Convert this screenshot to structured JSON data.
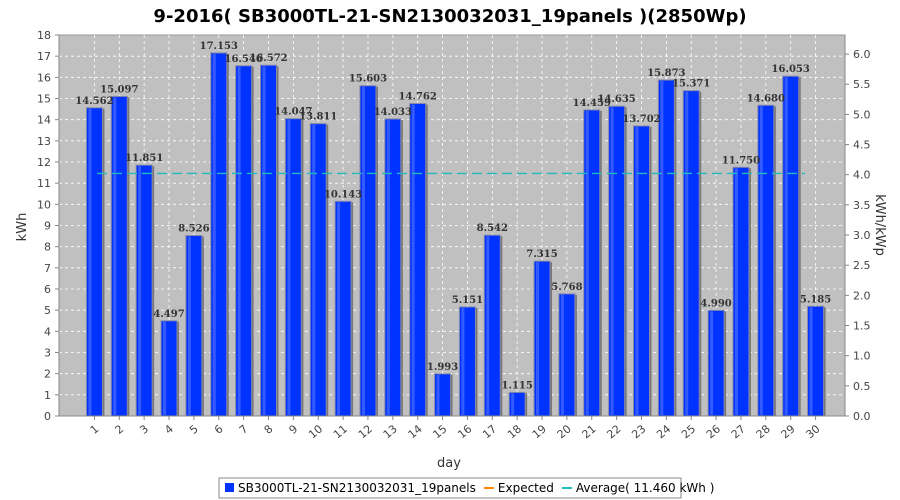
{
  "chart_data": {
    "type": "bar",
    "title": "9-2016( SB3000TL-21-SN2130032031_19panels )(2850Wp)",
    "xlabel": "day",
    "ylabel": "kWh",
    "y2label": "kWh/kWp",
    "ylim": [
      0,
      18
    ],
    "y2lim": [
      0,
      6.3157
    ],
    "yticks": [
      0,
      1,
      2,
      3,
      4,
      5,
      6,
      7,
      8,
      9,
      10,
      11,
      12,
      13,
      14,
      15,
      16,
      17,
      18
    ],
    "y2ticks": [
      "0.0",
      "0.5",
      "1.0",
      "1.5",
      "2.0",
      "2.5",
      "3.0",
      "3.5",
      "4.0",
      "4.5",
      "5.0",
      "5.5",
      "6.0"
    ],
    "grid": true,
    "legend_position": "bottom",
    "categories": [
      "1",
      "2",
      "3",
      "4",
      "5",
      "6",
      "7",
      "8",
      "9",
      "10",
      "11",
      "12",
      "13",
      "14",
      "15",
      "16",
      "17",
      "18",
      "19",
      "20",
      "21",
      "22",
      "23",
      "24",
      "25",
      "26",
      "27",
      "28",
      "29",
      "30"
    ],
    "series": [
      {
        "name": "SB3000TL-21-SN2130032031_19panels",
        "color": "#0033ff",
        "values": [
          14.562,
          15.097,
          11.851,
          4.497,
          8.526,
          17.153,
          16.546,
          16.572,
          14.047,
          13.811,
          10.143,
          15.603,
          14.033,
          14.762,
          1.993,
          5.151,
          8.542,
          1.115,
          7.315,
          5.768,
          14.459,
          14.635,
          13.702,
          15.873,
          15.371,
          4.99,
          11.75,
          14.68,
          16.053,
          5.185
        ],
        "labels": [
          "14.562",
          "15.097",
          "11.851",
          "4.497",
          "8.526",
          "17.153",
          "16.546",
          "16.572",
          "14.047",
          "13.811",
          "10.143",
          "15.603",
          "14.033",
          "14.762",
          "1.993",
          "5.151",
          "8.542",
          "1.115",
          "7.315",
          "5.768",
          "14.459",
          "14.635",
          "13.702",
          "15.873",
          "15.371",
          "4.990",
          "11.750",
          "14.680",
          "16.053",
          "5.185"
        ]
      }
    ],
    "average": {
      "value": 11.46,
      "color": "#22bbbb"
    },
    "legend": [
      {
        "label": "SB3000TL-21-SN2130032031_19panels",
        "color": "#0033ff",
        "kind": "box"
      },
      {
        "label": "Expected",
        "color": "#ff8800",
        "kind": "line"
      },
      {
        "label": "Average( 11.460 kWh )",
        "color": "#22bbbb",
        "kind": "line"
      }
    ]
  }
}
